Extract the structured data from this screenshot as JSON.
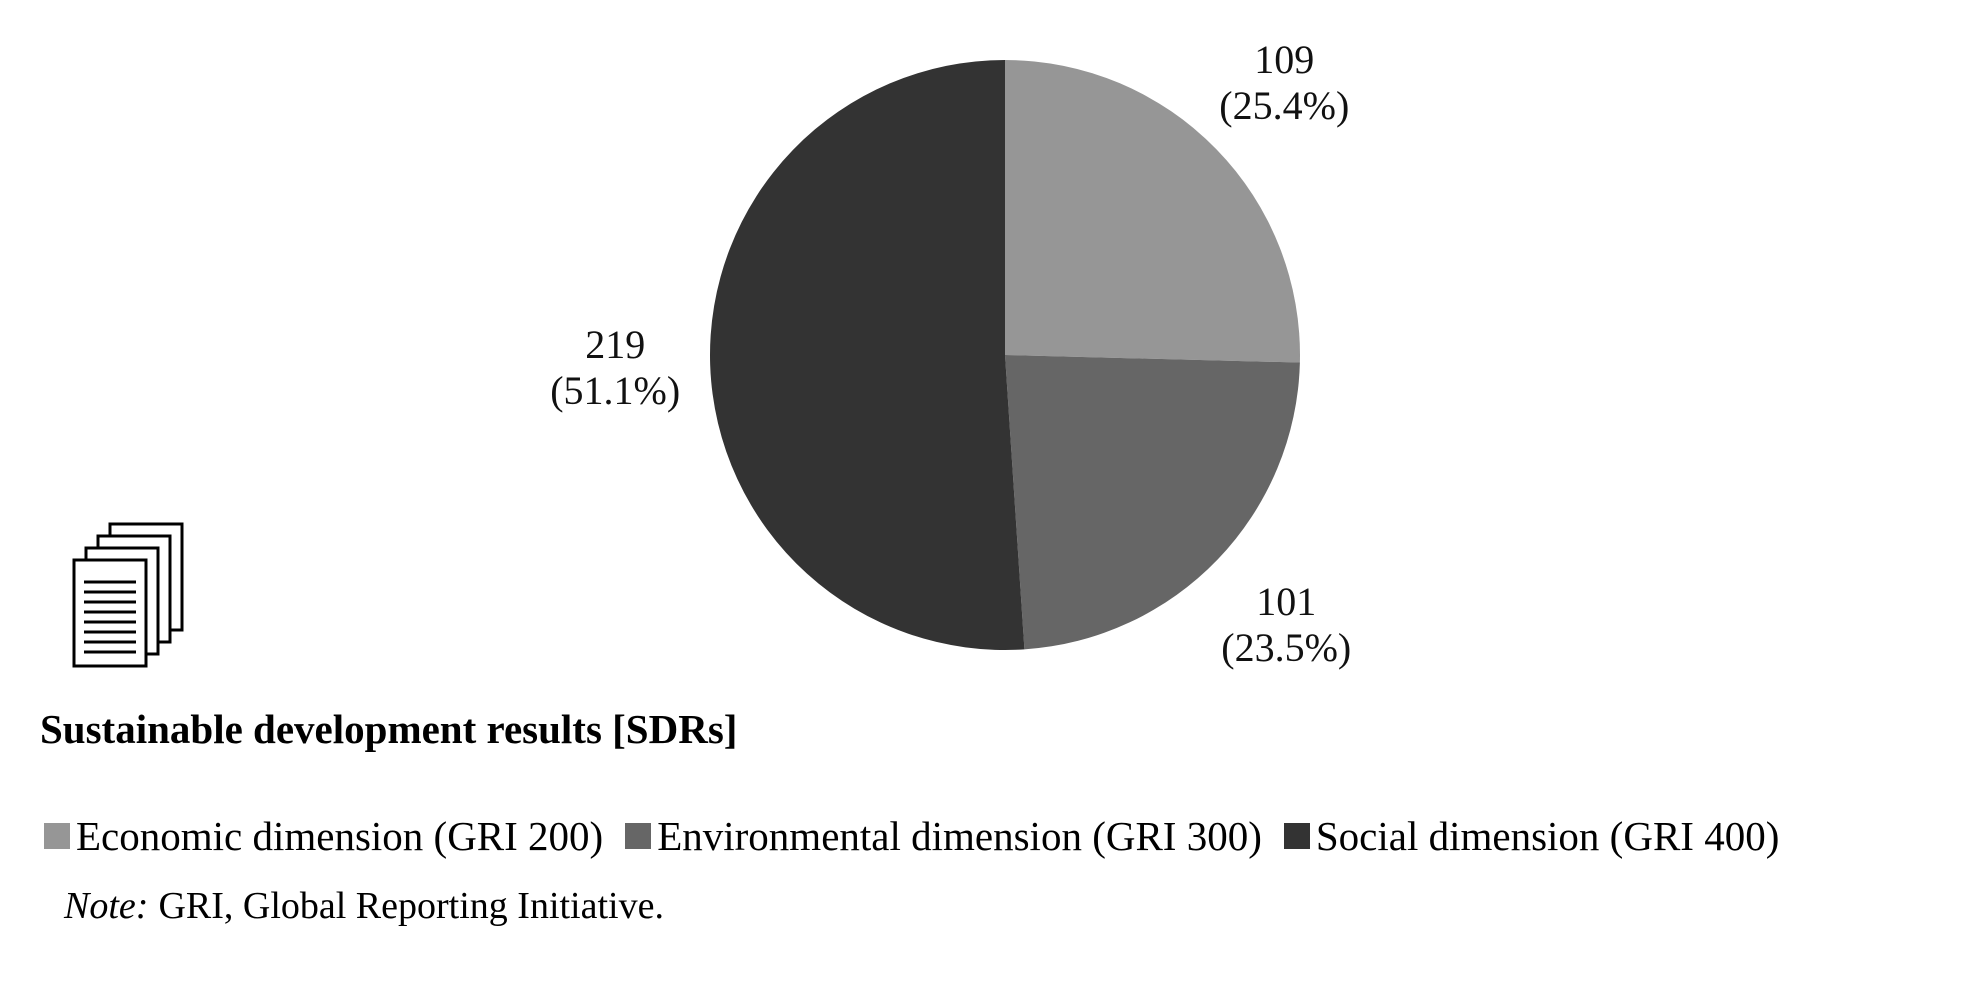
{
  "chart_data": {
    "type": "pie",
    "title": "Sustainable development results [SDRs]",
    "slices": [
      {
        "name": "Economic dimension (GRI 200)",
        "value": 109,
        "percent_label": "(25.4%)",
        "color": "#969696"
      },
      {
        "name": "Environmental dimension (GRI 300)",
        "value": 101,
        "percent_label": "(23.5%)",
        "color": "#666666"
      },
      {
        "name": "Social dimension (GRI 400)",
        "value": 219,
        "percent_label": "(51.1%)",
        "color": "#333333"
      }
    ],
    "start_angle_deg": 0,
    "direction": "clockwise",
    "legend_position": "bottom"
  },
  "icon": {
    "name": "documents-stack-icon"
  },
  "note": {
    "label": "Note:",
    "text": "GRI, Global Reporting Initiative."
  }
}
